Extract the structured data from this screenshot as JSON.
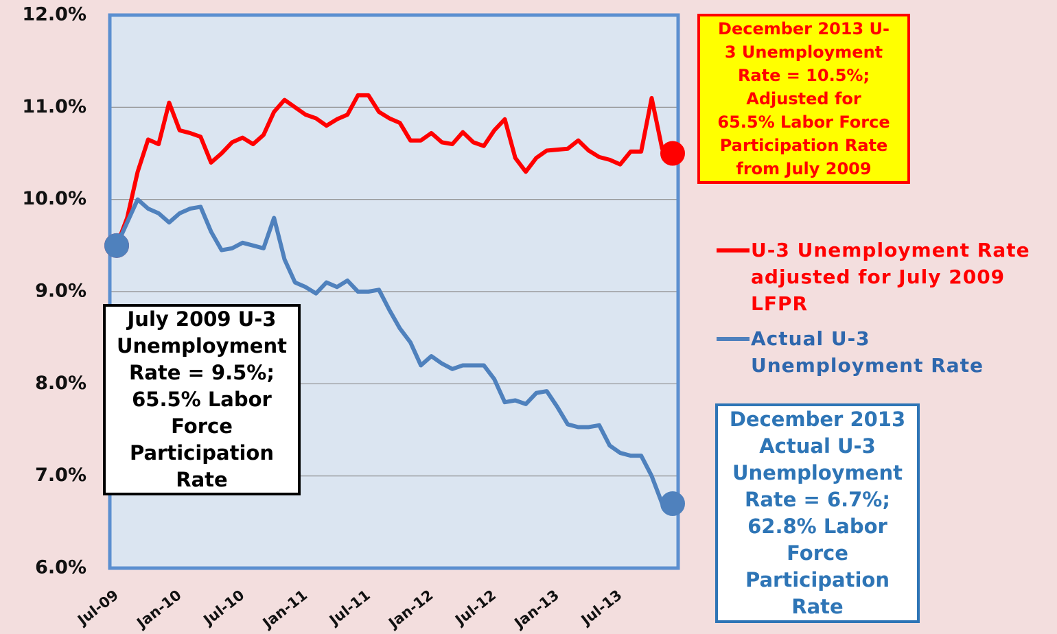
{
  "chart_data": {
    "type": "line",
    "categories": [
      "Jul-09",
      null,
      null,
      null,
      null,
      null,
      "Jan-10",
      null,
      null,
      null,
      null,
      null,
      "Jul-10",
      null,
      null,
      null,
      null,
      null,
      "Jan-11",
      null,
      null,
      null,
      null,
      null,
      "Jul-11",
      null,
      null,
      null,
      null,
      null,
      "Jan-12",
      null,
      null,
      null,
      null,
      null,
      "Jul-12",
      null,
      null,
      null,
      null,
      null,
      "Jan-13",
      null,
      null,
      null,
      null,
      null,
      "Jul-13",
      null,
      null,
      null,
      null,
      null
    ],
    "series": [
      {
        "name": "U-3 Unemployment Rate adjusted for July 2009 LFPR",
        "color": "#ff0000",
        "values": [
          9.5,
          9.8,
          10.3,
          10.65,
          10.6,
          11.05,
          10.75,
          10.72,
          10.68,
          10.4,
          10.5,
          10.62,
          10.67,
          10.6,
          10.7,
          10.95,
          11.08,
          11.0,
          10.92,
          10.88,
          10.8,
          10.87,
          10.92,
          11.13,
          11.13,
          10.95,
          10.88,
          10.83,
          10.64,
          10.64,
          10.72,
          10.62,
          10.6,
          10.73,
          10.62,
          10.58,
          10.75,
          10.87,
          10.45,
          10.3,
          10.45,
          10.53,
          10.54,
          10.55,
          10.64,
          10.53,
          10.46,
          10.43,
          10.38,
          10.52,
          10.52,
          11.1,
          10.55,
          10.5
        ]
      },
      {
        "name": "Actual U-3 Unemployment Rate",
        "color": "#4f81bd",
        "values": [
          9.5,
          9.75,
          10.0,
          9.9,
          9.85,
          9.75,
          9.85,
          9.9,
          9.92,
          9.65,
          9.45,
          9.47,
          9.53,
          9.5,
          9.47,
          9.8,
          9.35,
          9.1,
          9.05,
          8.98,
          9.1,
          9.05,
          9.12,
          9.0,
          9.0,
          9.02,
          8.8,
          8.6,
          8.45,
          8.2,
          8.3,
          8.22,
          8.16,
          8.2,
          8.2,
          8.2,
          8.05,
          7.8,
          7.82,
          7.78,
          7.9,
          7.92,
          7.75,
          7.56,
          7.53,
          7.53,
          7.55,
          7.33,
          7.25,
          7.22,
          7.22,
          7.0,
          6.7,
          6.7
        ]
      }
    ],
    "ylim": [
      6,
      12
    ],
    "yticks": [
      {
        "value": 6,
        "label": "6.0%"
      },
      {
        "value": 7,
        "label": "7.0%"
      },
      {
        "value": 8,
        "label": "8.0%"
      },
      {
        "value": 9,
        "label": "9.0%"
      },
      {
        "value": 10,
        "label": "10.0%"
      },
      {
        "value": 11,
        "label": "11.0%"
      },
      {
        "value": 12,
        "label": "12.0%"
      }
    ],
    "grid": true,
    "annotations": [
      {
        "lines": [
          "December 2013 U-",
          "3 Unemployment",
          "Rate = 10.5%;",
          "Adjusted for",
          "65.5% Labor Force",
          "Participation Rate",
          "from July 2009"
        ]
      },
      {
        "lines": [
          "July 2009 U-3",
          "Unemployment",
          "Rate = 9.5%;",
          "65.5% Labor",
          "Force",
          "Participation",
          "Rate"
        ]
      },
      {
        "lines": [
          "December 2013",
          "Actual U-3",
          "Unemployment",
          "Rate = 6.7%;",
          "62.8% Labor",
          "Force",
          "Participation",
          "Rate"
        ]
      }
    ]
  }
}
